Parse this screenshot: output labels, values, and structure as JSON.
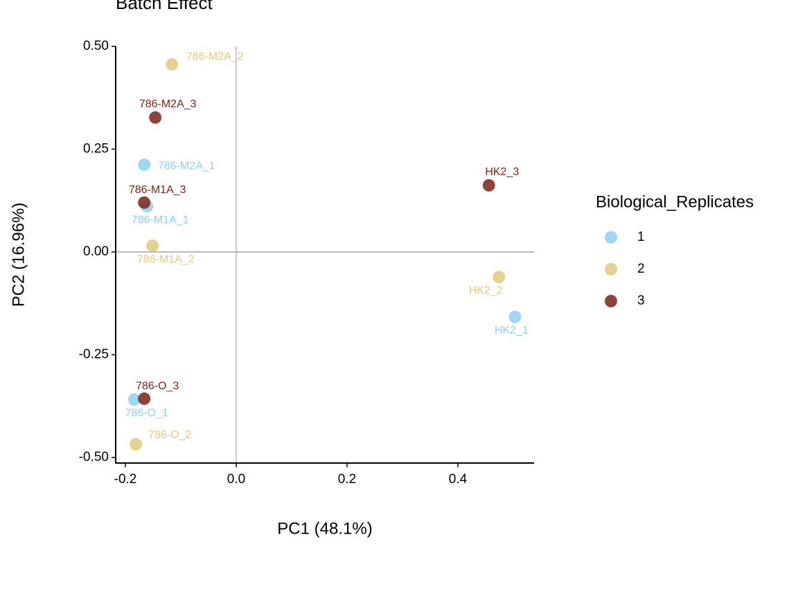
{
  "chart_data": {
    "type": "scatter",
    "title": "Batch Effect",
    "x_label": "PC1 (48.1%)",
    "y_label": "PC2 (16.96%)",
    "legend_title": "Biological_Replicates",
    "legend_position": "right",
    "xlim": [
      -0.2175,
      0.5375
    ],
    "ylim": [
      -0.5135,
      0.5
    ],
    "xticks": [
      -0.2,
      {
        "value": 0,
        "label": "0.0"
      },
      0.2,
      0.4
    ],
    "yticks": [
      {
        "value": 0.5,
        "label": "0.50"
      },
      {
        "value": 0.25,
        "label": "0.25"
      },
      {
        "value": 0,
        "label": "0.00"
      },
      {
        "value": -0.25,
        "label": "-0.25"
      },
      {
        "value": -0.5,
        "label": "-0.50"
      }
    ],
    "hline": 0,
    "vline": 0,
    "series": [
      {
        "name": "1",
        "color": "#8ecfef",
        "labels": [
          "786-M2A_1",
          "786-M1A_1",
          "HK2_1",
          "786-O_1"
        ],
        "x": [
          -0.166,
          -0.161,
          0.503,
          -0.184
        ],
        "values": [
          0.212,
          0.111,
          -0.158,
          -0.359
        ]
      },
      {
        "name": "2",
        "color": "#e0c97e",
        "labels": [
          "786-M2A_2",
          "786-M1A_2",
          "HK2_2",
          "786-O_2"
        ],
        "x": [
          -0.116,
          -0.151,
          0.474,
          -0.181
        ],
        "values": [
          0.456,
          0.015,
          -0.061,
          -0.468
        ]
      },
      {
        "name": "3",
        "color": "#7a2416",
        "labels": [
          "786-M2A_3",
          "786-M1A_3",
          "HK2_3",
          "786-O_3"
        ],
        "x": [
          -0.146,
          -0.166,
          0.456,
          -0.166
        ],
        "values": [
          0.327,
          0.12,
          0.162,
          -0.357
        ]
      }
    ]
  }
}
